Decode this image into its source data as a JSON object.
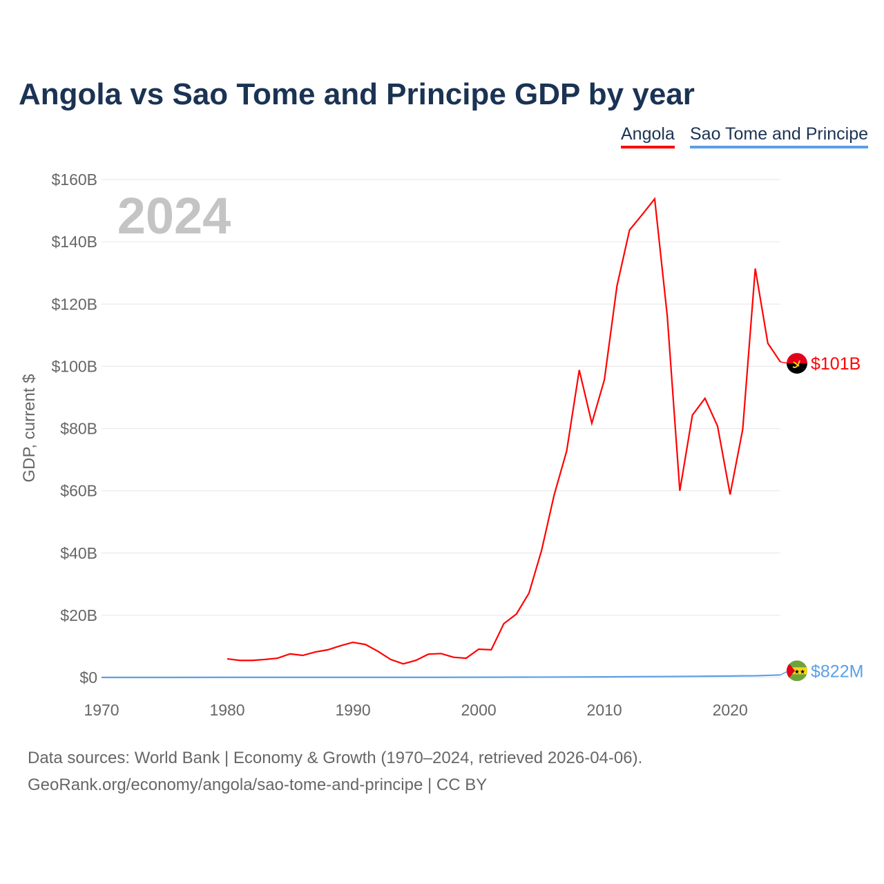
{
  "chart_data": {
    "type": "line",
    "title": "Angola vs Sao Tome and Principe GDP by year",
    "ylabel": "GDP, current $",
    "xlabel": "",
    "year_label": "2024",
    "xlim": [
      1970,
      2024
    ],
    "ylim": [
      0,
      160
    ],
    "y_unit": "billion USD",
    "x_ticks": [
      1970,
      1980,
      1990,
      2000,
      2010,
      2020
    ],
    "y_ticks": [
      0,
      20,
      40,
      60,
      80,
      100,
      120,
      140,
      160
    ],
    "y_tick_labels": [
      "$0",
      "$20B",
      "$40B",
      "$60B",
      "$80B",
      "$100B",
      "$120B",
      "$140B",
      "$160B"
    ],
    "grid": true,
    "legend_position": "top-right",
    "series": [
      {
        "name": "Angola",
        "color": "#ff0000",
        "end_label": "$101B",
        "flag": "angola-flag",
        "x": [
          1980,
          1981,
          1982,
          1983,
          1984,
          1985,
          1986,
          1987,
          1988,
          1989,
          1990,
          1991,
          1992,
          1993,
          1994,
          1995,
          1996,
          1997,
          1998,
          1999,
          2000,
          2001,
          2002,
          2003,
          2004,
          2005,
          2006,
          2007,
          2008,
          2009,
          2010,
          2011,
          2012,
          2013,
          2014,
          2015,
          2016,
          2017,
          2018,
          2019,
          2020,
          2021,
          2022,
          2023,
          2024
        ],
        "values": [
          6.0,
          5.5,
          5.5,
          5.8,
          6.2,
          7.6,
          7.1,
          8.2,
          8.9,
          10.2,
          11.3,
          10.6,
          8.4,
          5.8,
          4.4,
          5.5,
          7.5,
          7.7,
          6.5,
          6.2,
          9.1,
          8.9,
          17.3,
          20.4,
          27.1,
          40.8,
          58.6,
          72.8,
          98.8,
          81.7,
          95.7,
          125.8,
          143.8,
          148.7,
          153.8,
          116.2,
          60.0,
          84.3,
          89.7,
          80.8,
          58.8,
          79.7,
          131.4,
          107.4,
          101.4
        ]
      },
      {
        "name": "Sao Tome and Principe",
        "color": "#5aa0e6",
        "end_label": "$822M",
        "flag": "sao-tome-flag",
        "x": [
          1970,
          1975,
          1980,
          1985,
          1990,
          1995,
          2000,
          2005,
          2010,
          2015,
          2018,
          2020,
          2021,
          2022,
          2023,
          2024
        ],
        "values": [
          0.02,
          0.03,
          0.05,
          0.06,
          0.06,
          0.05,
          0.08,
          0.13,
          0.2,
          0.32,
          0.41,
          0.47,
          0.53,
          0.55,
          0.68,
          0.822
        ]
      }
    ]
  },
  "footer": {
    "line1": "Data sources: World Bank | Economy & Growth (1970–2024, retrieved 2026-04-06).",
    "line2": "GeoRank.org/economy/angola/sao-tome-and-principe | CC BY"
  }
}
